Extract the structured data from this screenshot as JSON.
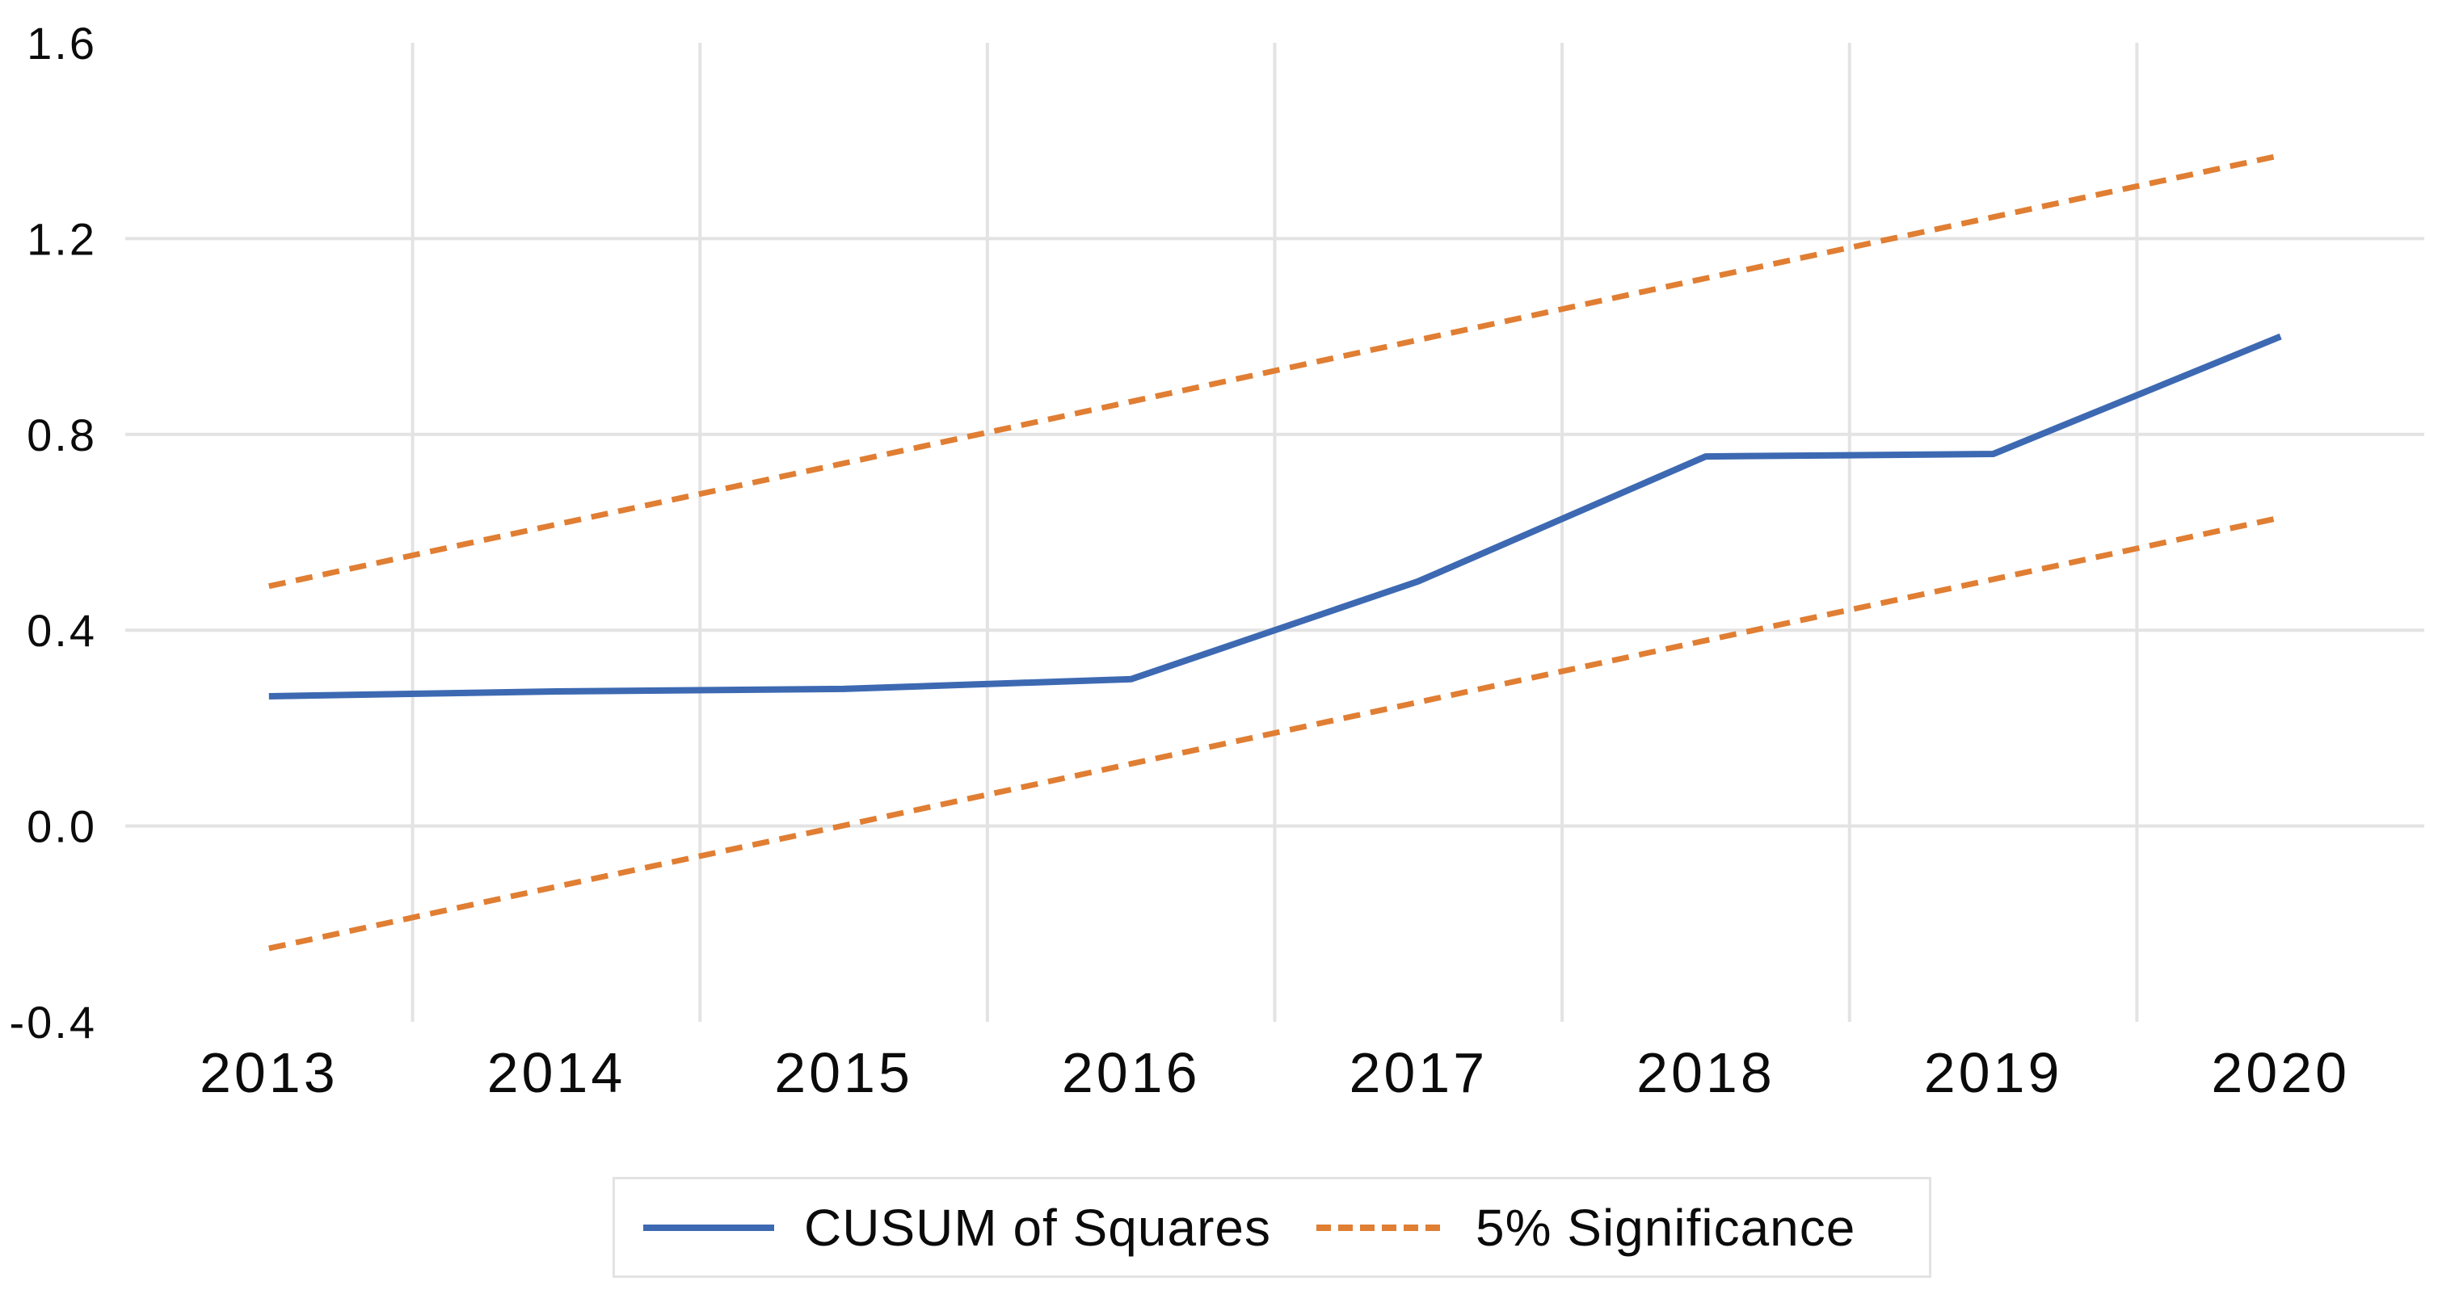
{
  "chart_data": {
    "type": "line",
    "title": "",
    "categories": [
      "2013",
      "2014",
      "2015",
      "2016",
      "2017",
      "2018",
      "2019",
      "2020"
    ],
    "series": [
      {
        "name": "CUSUM of Squares",
        "style": "solid",
        "color": "#3d69b2",
        "values": [
          0.265,
          0.275,
          0.28,
          0.3,
          0.5,
          0.755,
          0.76,
          1.0
        ]
      },
      {
        "name": "5% Significance",
        "role": "upper-bound",
        "style": "dashed",
        "color": "#e07e33",
        "values": [
          0.49,
          0.616,
          0.741,
          0.867,
          0.993,
          1.119,
          1.244,
          1.37
        ]
      },
      {
        "name": "5% Significance",
        "role": "lower-bound",
        "style": "dashed",
        "color": "#e07e33",
        "values": [
          -0.25,
          -0.124,
          0.001,
          0.127,
          0.253,
          0.379,
          0.504,
          0.63
        ]
      }
    ],
    "x_axis": {
      "labels": [
        "2013",
        "2014",
        "2015",
        "2016",
        "2017",
        "2018",
        "2019",
        "2020"
      ]
    },
    "y_axis": {
      "min": -0.4,
      "max": 1.6,
      "tick_step": 0.4,
      "tick_labels": [
        "1.6",
        "1.2",
        "0.8",
        "0.4",
        "0.0",
        "-0.4"
      ],
      "gridlines_at": [
        1.2,
        0.8,
        0.4,
        0.0
      ]
    },
    "grid": {
      "horizontal": true,
      "vertical": "between-categories",
      "color": "#e3e3e3"
    },
    "legend": {
      "position": "bottom-center",
      "border_color": "#e3e3e3",
      "entries": [
        {
          "label": "CUSUM of Squares",
          "swatch": "solid-blue"
        },
        {
          "label": "5% Significance",
          "swatch": "dashed-orange"
        }
      ]
    },
    "background": "#ffffff",
    "text_color": "#0b0b0b"
  }
}
